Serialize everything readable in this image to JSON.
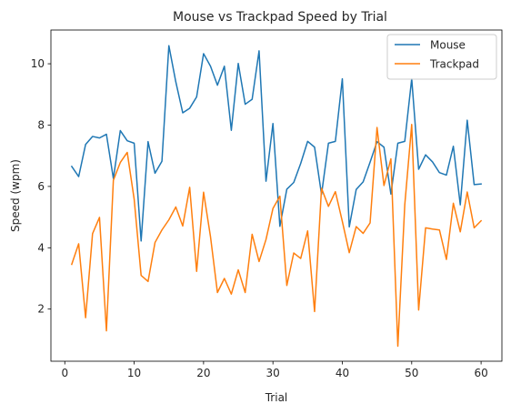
{
  "chart_data": {
    "type": "line",
    "title": "Mouse vs Trackpad Speed by Trial",
    "xlabel": "Trial",
    "ylabel": "Speed (wpm)",
    "xlim": [
      -2,
      63
    ],
    "ylim": [
      0.3,
      11.1
    ],
    "xticks": [
      0,
      10,
      20,
      30,
      40,
      50,
      60
    ],
    "yticks": [
      2,
      4,
      6,
      8,
      10
    ],
    "grid": false,
    "legend_position": "top-right",
    "x": [
      1,
      2,
      3,
      4,
      5,
      6,
      7,
      8,
      9,
      10,
      11,
      12,
      13,
      14,
      15,
      16,
      17,
      18,
      19,
      20,
      21,
      22,
      23,
      24,
      25,
      26,
      27,
      28,
      29,
      30,
      31,
      32,
      33,
      34,
      35,
      36,
      37,
      38,
      39,
      40,
      41,
      42,
      43,
      44,
      45,
      46,
      47,
      48,
      49,
      50,
      51,
      52,
      53,
      54,
      55,
      56,
      57,
      58,
      59,
      60
    ],
    "series": [
      {
        "name": "Mouse",
        "color": "#1f77b4",
        "values": [
          6.65,
          6.32,
          7.37,
          7.63,
          7.58,
          7.7,
          6.26,
          7.82,
          7.49,
          7.41,
          4.22,
          7.46,
          6.43,
          6.82,
          10.59,
          9.41,
          8.4,
          8.55,
          8.92,
          10.33,
          9.92,
          9.3,
          9.92,
          7.83,
          10.01,
          8.68,
          8.84,
          10.42,
          6.17,
          8.05,
          4.7,
          5.91,
          6.13,
          6.75,
          7.47,
          7.28,
          5.74,
          7.41,
          7.47,
          9.51,
          4.68,
          5.9,
          6.15,
          6.79,
          7.46,
          7.28,
          5.75,
          7.41,
          7.47,
          9.51,
          6.56,
          7.03,
          6.8,
          6.45,
          6.37,
          7.31,
          5.4,
          8.16,
          6.06,
          6.08
        ]
      },
      {
        "name": "Trackpad",
        "color": "#ff7f0e",
        "values": [
          3.46,
          4.13,
          1.72,
          4.46,
          4.99,
          1.29,
          6.2,
          6.78,
          7.11,
          5.58,
          3.1,
          2.9,
          4.17,
          4.58,
          4.91,
          5.33,
          4.71,
          5.97,
          3.23,
          5.81,
          4.36,
          2.54,
          3.0,
          2.49,
          3.28,
          2.54,
          4.44,
          3.55,
          4.27,
          5.28,
          5.68,
          2.77,
          3.83,
          3.65,
          4.55,
          1.92,
          5.94,
          5.35,
          5.83,
          4.86,
          3.84,
          4.69,
          4.47,
          4.81,
          7.92,
          6.03,
          6.9,
          0.79,
          5.4,
          8.02,
          1.97,
          4.65,
          4.61,
          4.58,
          3.62,
          5.45,
          4.52,
          5.82,
          4.65,
          4.88
        ]
      }
    ]
  }
}
